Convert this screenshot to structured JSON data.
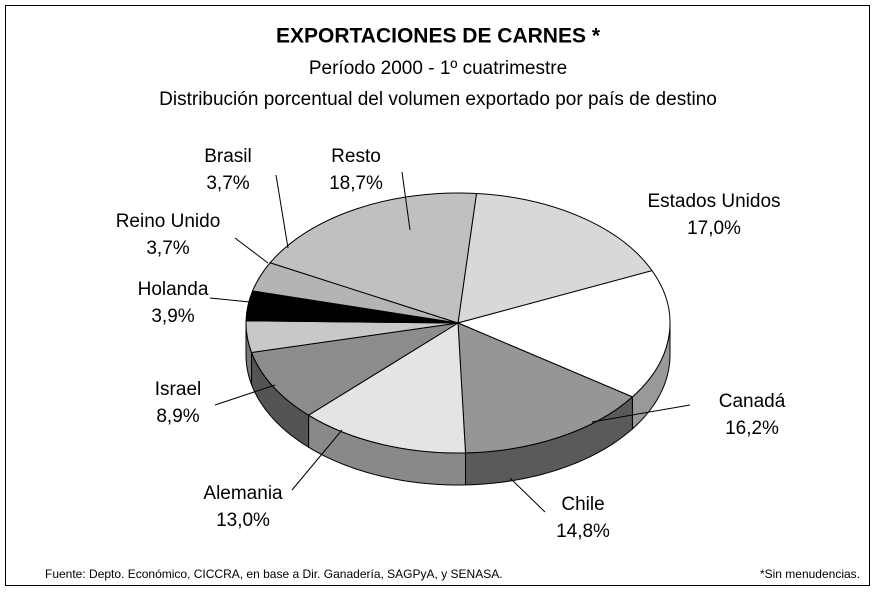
{
  "chart_data": {
    "type": "pie3d",
    "title": "EXPORTACIONES DE CARNES *",
    "subtitle": "Período 2000 - 1º cuatrimestre",
    "description": "Distribución porcentual del volumen exportado por país de destino",
    "categories": [
      "Estados Unidos",
      "Canadá",
      "Chile",
      "Alemania",
      "Israel",
      "Holanda",
      "Reino Unido",
      "Brasil",
      "Resto"
    ],
    "values": [
      17.0,
      16.2,
      14.8,
      13.0,
      8.9,
      3.9,
      3.7,
      3.7,
      18.7
    ],
    "value_labels": [
      "17,0%",
      "16,2%",
      "14,8%",
      "13,0%",
      "8,9%",
      "3,9%",
      "3,7%",
      "3,7%",
      "18,7%"
    ],
    "colors": [
      "#d8d8d8",
      "#ffffff",
      "#969696",
      "#e4e4e4",
      "#8c8c8c",
      "#c8c8c8",
      "#000000",
      "#b4b4b4",
      "#c0c0c0"
    ],
    "source": "Fuente: Depto. Económico, CICCRA,  en base a Dir. Ganadería, SAGPyA, y SENASA.",
    "note": "*Sin menudencias."
  }
}
